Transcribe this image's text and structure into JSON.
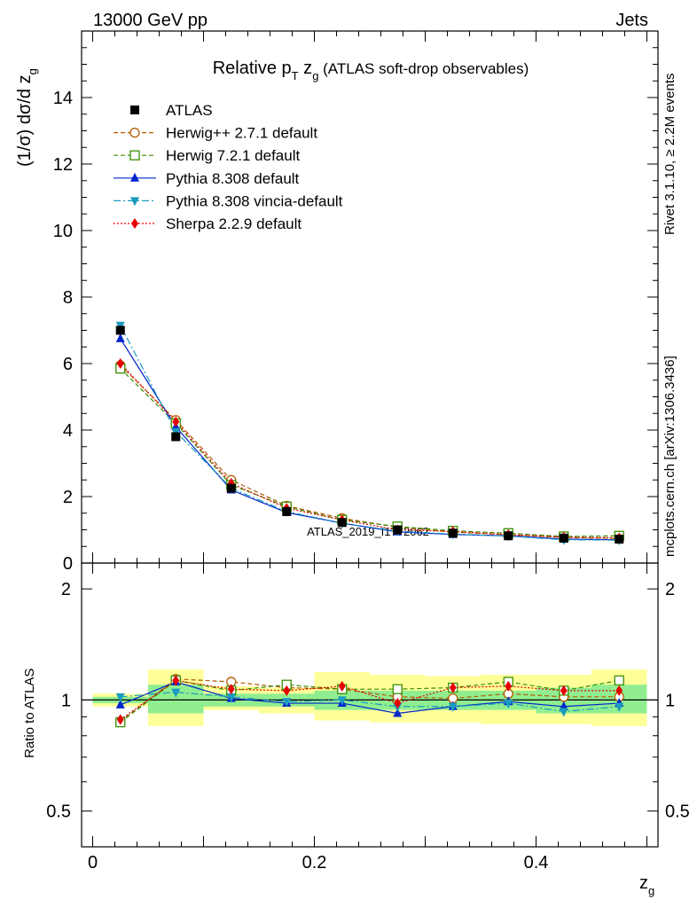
{
  "header": {
    "left": "13000 GeV pp",
    "right": "Jets"
  },
  "side_labels": {
    "rivet": "Rivet 3.1.10, ≥ 2.2M events",
    "mcplots": "mcplots.cern.ch [arXiv:1306.3436]"
  },
  "chart_data": [
    {
      "type": "line",
      "title": {
        "main": "Relative p",
        "main_sub": "T",
        "main_rest": " z",
        "main_rest_sub": "g",
        "note": " (ATLAS soft-drop observables)"
      },
      "ylabel": {
        "text": "(1/σ) dσ/d z",
        "sub": "g"
      },
      "watermark": "ATLAS_2019_I1772062",
      "xlim": [
        -0.01,
        0.51
      ],
      "ylim": [
        0,
        16
      ],
      "ytick_labels": [
        "0",
        "2",
        "4",
        "6",
        "8",
        "10",
        "12",
        "14"
      ],
      "legend_position": "top-left",
      "x": [
        0.025,
        0.075,
        0.125,
        0.175,
        0.225,
        0.275,
        0.325,
        0.375,
        0.425,
        0.475
      ],
      "series": [
        {
          "name": "ATLAS",
          "color": "#000000",
          "marker": "square-filled",
          "line": "none",
          "values": [
            7.0,
            3.8,
            2.25,
            1.55,
            1.22,
            1.0,
            0.9,
            0.82,
            0.75,
            0.72
          ]
        },
        {
          "name": "Herwig++ 2.7.1 default",
          "color": "#b35a00",
          "marker": "circle-open",
          "line": "dashed",
          "values": [
            5.95,
            4.3,
            2.5,
            1.72,
            1.35,
            1.08,
            0.93,
            0.85,
            0.77,
            0.74
          ]
        },
        {
          "name": "Herwig 7.2.1 default",
          "color": "#3a8f00",
          "marker": "square-open",
          "line": "dashed",
          "values": [
            5.85,
            4.2,
            2.35,
            1.7,
            1.3,
            1.1,
            0.97,
            0.9,
            0.8,
            0.82
          ]
        },
        {
          "name": "Pythia 8.308 default",
          "color": "#0026cc",
          "marker": "triangle-up-filled",
          "line": "solid",
          "values": [
            6.75,
            4.1,
            2.2,
            1.52,
            1.2,
            0.94,
            0.86,
            0.82,
            0.72,
            0.7
          ]
        },
        {
          "name": "Pythia 8.308 vincia-default",
          "color": "#1a9bbf",
          "marker": "triangle-down-filled",
          "line": "dashdot",
          "values": [
            7.15,
            3.95,
            2.25,
            1.55,
            1.2,
            0.96,
            0.87,
            0.81,
            0.7,
            0.69
          ]
        },
        {
          "name": "Sherpa 2.2.9 default",
          "color": "#e60000",
          "marker": "diamond-filled",
          "line": "dotted",
          "values": [
            6.0,
            4.25,
            2.4,
            1.65,
            1.3,
            1.0,
            0.95,
            0.86,
            0.78,
            0.76
          ]
        }
      ]
    },
    {
      "type": "line",
      "ylabel": "Ratio to ATLAS",
      "xlabel": {
        "text": "z",
        "sub": "g"
      },
      "xlim": [
        -0.01,
        0.51
      ],
      "ylim": [
        0.4,
        2.35
      ],
      "yscale": "log",
      "xtick_labels": [
        "0",
        "0.2",
        "0.4"
      ],
      "ytick_labels": [
        "0.5",
        "1",
        "2"
      ],
      "x": [
        0.025,
        0.075,
        0.125,
        0.175,
        0.225,
        0.275,
        0.325,
        0.375,
        0.425,
        0.475
      ],
      "band_edges": [
        0.0,
        0.05,
        0.1,
        0.15,
        0.2,
        0.25,
        0.3,
        0.35,
        0.4,
        0.45,
        0.5
      ],
      "band_inner": [
        [
          0.98,
          1.02
        ],
        [
          0.92,
          1.1
        ],
        [
          0.96,
          1.04
        ],
        [
          0.96,
          1.04
        ],
        [
          0.94,
          1.06
        ],
        [
          0.94,
          1.06
        ],
        [
          0.94,
          1.06
        ],
        [
          0.94,
          1.06
        ],
        [
          0.92,
          1.08
        ],
        [
          0.92,
          1.1
        ]
      ],
      "band_outer": [
        [
          0.96,
          1.04
        ],
        [
          0.85,
          1.21
        ],
        [
          0.94,
          1.09
        ],
        [
          0.92,
          1.08
        ],
        [
          0.88,
          1.19
        ],
        [
          0.87,
          1.17
        ],
        [
          0.87,
          1.16
        ],
        [
          0.86,
          1.17
        ],
        [
          0.86,
          1.17
        ],
        [
          0.85,
          1.21
        ]
      ],
      "band_inner_color": "#90ee90",
      "band_outer_color": "#ffff99",
      "series": [
        {
          "name": "Herwig++ 2.7.1 default",
          "values": [
            0.875,
            1.14,
            1.12,
            1.08,
            1.07,
            1.02,
            1.01,
            1.04,
            1.02,
            1.02
          ]
        },
        {
          "name": "Herwig 7.2.1 default",
          "values": [
            0.87,
            1.13,
            1.06,
            1.1,
            1.07,
            1.07,
            1.08,
            1.12,
            1.06,
            1.13
          ]
        },
        {
          "name": "Pythia 8.308 default",
          "values": [
            0.97,
            1.12,
            1.01,
            0.98,
            0.98,
            0.92,
            0.96,
            0.99,
            0.96,
            0.98
          ]
        },
        {
          "name": "Pythia 8.308 vincia-default",
          "values": [
            1.02,
            1.05,
            1.02,
            0.99,
            1.0,
            0.96,
            0.96,
            0.98,
            0.93,
            0.96
          ]
        },
        {
          "name": "Sherpa 2.2.9 default",
          "values": [
            0.885,
            1.13,
            1.07,
            1.06,
            1.09,
            0.98,
            1.08,
            1.09,
            1.06,
            1.06
          ]
        }
      ]
    }
  ]
}
